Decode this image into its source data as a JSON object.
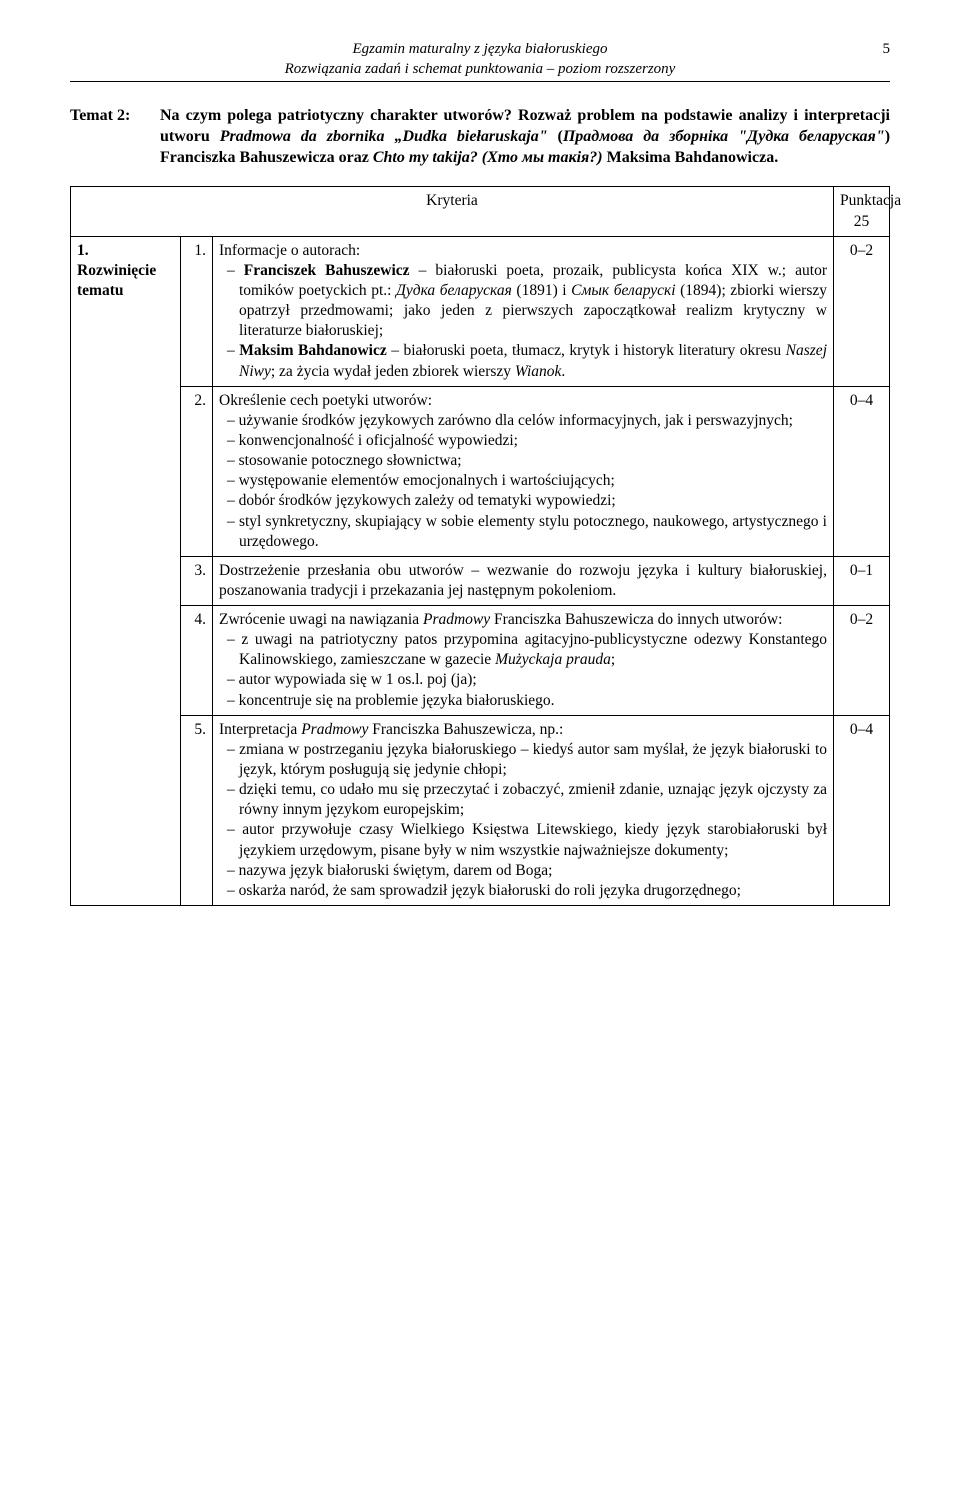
{
  "header": {
    "line1": "Egzamin maturalny z języka białoruskiego",
    "line2": "Rozwiązania zadań i schemat punktowania – poziom rozszerzony",
    "page": "5"
  },
  "intro": {
    "label": "Temat 2:",
    "text_1": "Na czym polega patriotyczny charakter utworów? Rozważ problem na podstawie analizy i interpretacji utworu ",
    "em_1": "Pradmowa da zbornika „Dudka biełaruskaja\"",
    "text_2": " (",
    "em_2": "Прадмова да зборніка \"Дудка беларуская\"",
    "text_3": ") Franciszka Bahuszewicza oraz ",
    "em_3": "Chto my takija? (Хто мы такія?)",
    "text_4": " Maksima Bahdanowicza."
  },
  "table": {
    "kryteria_label": "Kryteria",
    "pts_label": "Punktacja",
    "pts_total": "25",
    "section1": {
      "label_num": "1.",
      "label_title": "Rozwinięcie tematu"
    },
    "rows": [
      {
        "num": "1.",
        "lead": "Informacje o autorach:",
        "items_html": [
          "<span class=\"bold\">Franciszek Bahuszewicz</span> – białoruski poeta, prozaik, publicysta końca XIX w.; autor tomików poetyckich pt.: <span class=\"italic\">Дудка беларуская</span> (1891) i <span class=\"italic\">Смык беларускі</span> (1894); zbiorki wierszy opatrzył przedmowami; jako jeden z pierwszych zapoczątkował realizm krytyczny w literaturze białoruskiej;",
          "<span class=\"bold\">Maksim Bahdanowicz</span> – białoruski poeta, tłumacz, krytyk i historyk literatury okresu <span class=\"italic\">Naszej Niwy</span>; za życia wydał jeden zbiorek wierszy <span class=\"italic\">Wianok</span>."
        ],
        "pts": "0–2"
      },
      {
        "num": "2.",
        "lead": "Określenie cech poetyki utworów:",
        "items_html": [
          "używanie środków językowych zarówno dla celów informacyjnych, jak i perswazyjnych;",
          "konwencjonalność i oficjalność wypowiedzi;",
          "stosowanie potocznego słownictwa;",
          "występowanie elementów emocjonalnych i wartościujących;",
          "dobór środków językowych zależy od tematyki wypowiedzi;",
          "styl synkretyczny, skupiający w sobie elementy stylu potocznego, naukowego, artystycznego i urzędowego."
        ],
        "pts": "0–4"
      },
      {
        "num": "3.",
        "lead": "Dostrzeżenie przesłania obu utworów – wezwanie do rozwoju języka i kultury białoruskiej, poszanowania tradycji i przekazania jej następnym pokoleniom.",
        "items_html": [],
        "pts": "0–1"
      },
      {
        "num": "4.",
        "lead_html": "Zwrócenie uwagi na nawiązania <span class=\"italic\">Pradmowy</span> Franciszka Bahuszewicza do innych utworów:",
        "items_html": [
          "z uwagi na patriotyczny patos przypomina agitacyjno-publicystyczne odezwy Konstantego Kalinowskiego, zamieszczane w gazecie <span class=\"italic\">Mużyckaja prauda</span>;",
          "autor wypowiada się w 1 os.l. poj (ja);",
          "koncentruje się na problemie języka białoruskiego."
        ],
        "pts": "0–2"
      },
      {
        "num": "5.",
        "lead_html": "Interpretacja <span class=\"italic\">Pradmowy</span> Franciszka Bahuszewicza, np.:",
        "items_html": [
          "zmiana w postrzeganiu języka białoruskiego – kiedyś autor sam myślał, że język białoruski to język, którym posługują się jedynie chłopi;",
          "dzięki temu, co udało mu się przeczytać i zobaczyć, zmienił zdanie, uznając język ojczysty za równy innym językom europejskim;",
          "autor przywołuje czasy Wielkiego Księstwa Litewskiego, kiedy język starobiałoruski był językiem urzędowym, pisane były w nim wszystkie najważniejsze dokumenty;",
          "nazywa język białoruski świętym, darem od Boga;",
          "oskarża naród, że sam sprowadził język białoruski do roli języka drugorzędnego;"
        ],
        "pts": "0–4"
      }
    ]
  }
}
